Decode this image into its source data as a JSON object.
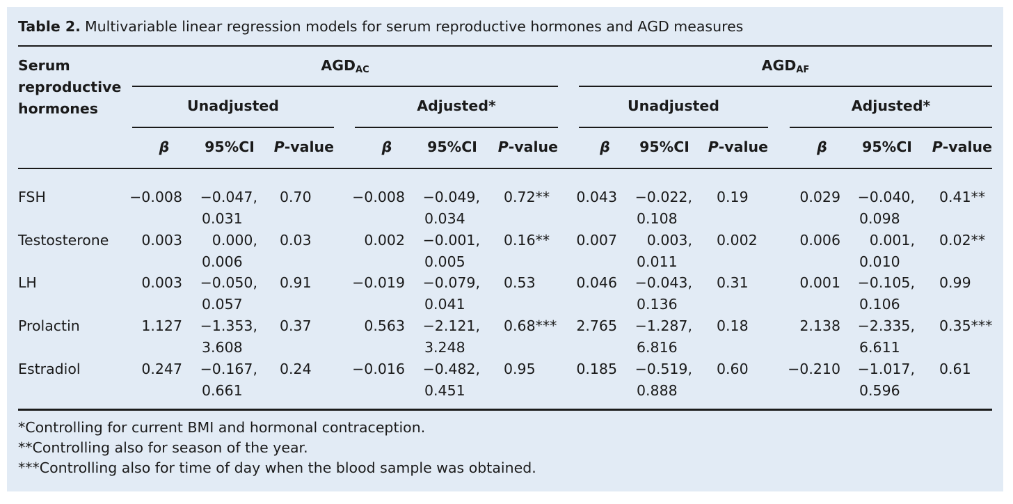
{
  "caption": {
    "label": "Table 2.",
    "text": "Multivariable linear regression models for serum reproductive hormones and AGD measures"
  },
  "header": {
    "row_label": [
      "Serum",
      "reproductive",
      "hormones"
    ],
    "groups": [
      {
        "main": "AGD",
        "sub": "AC"
      },
      {
        "main": "AGD",
        "sub": "AF"
      }
    ],
    "subgroups": [
      "Unadjusted",
      "Adjusted*",
      "Unadjusted",
      "Adjusted*"
    ],
    "columns": {
      "beta": "β",
      "ci": "95%CI",
      "p_italic": "P",
      "p_rest": "-value"
    }
  },
  "rows": [
    {
      "label": "FSH",
      "cells": [
        {
          "beta": "−0.008",
          "ci1": "−0.047,",
          "ci2": "0.031",
          "p": "0.70"
        },
        {
          "beta": "−0.008",
          "ci1": "−0.049,",
          "ci2": "0.034",
          "p": "0.72**"
        },
        {
          "beta": "0.043",
          "ci1": "−0.022,",
          "ci2": "0.108",
          "p": "0.19"
        },
        {
          "beta": "0.029",
          "ci1": "−0.040,",
          "ci2": "0.098",
          "p": "0.41**"
        }
      ]
    },
    {
      "label": "Testosterone",
      "cells": [
        {
          "beta": "0.003",
          "ci1": "0.000,",
          "ci2": "0.006",
          "p": "0.03"
        },
        {
          "beta": "0.002",
          "ci1": "−0.001,",
          "ci2": "0.005",
          "p": "0.16**"
        },
        {
          "beta": "0.007",
          "ci1": "0.003,",
          "ci2": "0.011",
          "p": "0.002"
        },
        {
          "beta": "0.006",
          "ci1": "0.001,",
          "ci2": "0.010",
          "p": "0.02**"
        }
      ]
    },
    {
      "label": "LH",
      "cells": [
        {
          "beta": "0.003",
          "ci1": "−0.050,",
          "ci2": "0.057",
          "p": "0.91"
        },
        {
          "beta": "−0.019",
          "ci1": "−0.079,",
          "ci2": "0.041",
          "p": "0.53"
        },
        {
          "beta": "0.046",
          "ci1": "−0.043,",
          "ci2": "0.136",
          "p": "0.31"
        },
        {
          "beta": "0.001",
          "ci1": "−0.105,",
          "ci2": "0.106",
          "p": "0.99"
        }
      ]
    },
    {
      "label": "Prolactin",
      "cells": [
        {
          "beta": "1.127",
          "ci1": "−1.353,",
          "ci2": "3.608",
          "p": "0.37"
        },
        {
          "beta": "0.563",
          "ci1": "−2.121,",
          "ci2": "3.248",
          "p": "0.68***"
        },
        {
          "beta": "2.765",
          "ci1": "−1.287,",
          "ci2": "6.816",
          "p": "0.18"
        },
        {
          "beta": "2.138",
          "ci1": "−2.335,",
          "ci2": "6.611",
          "p": "0.35***"
        }
      ]
    },
    {
      "label": "Estradiol",
      "cells": [
        {
          "beta": "0.247",
          "ci1": "−0.167,",
          "ci2": "0.661",
          "p": "0.24"
        },
        {
          "beta": "−0.016",
          "ci1": "−0.482,",
          "ci2": "0.451",
          "p": "0.95"
        },
        {
          "beta": "0.185",
          "ci1": "−0.519,",
          "ci2": "0.888",
          "p": "0.60"
        },
        {
          "beta": "−0.210",
          "ci1": "−1.017,",
          "ci2": "0.596",
          "p": "0.61"
        }
      ]
    }
  ],
  "footnotes": [
    "*Controlling for current BMI and hormonal contraception.",
    "**Controlling also for season of the year.",
    "***Controlling also for time of day when the blood sample was obtained."
  ]
}
